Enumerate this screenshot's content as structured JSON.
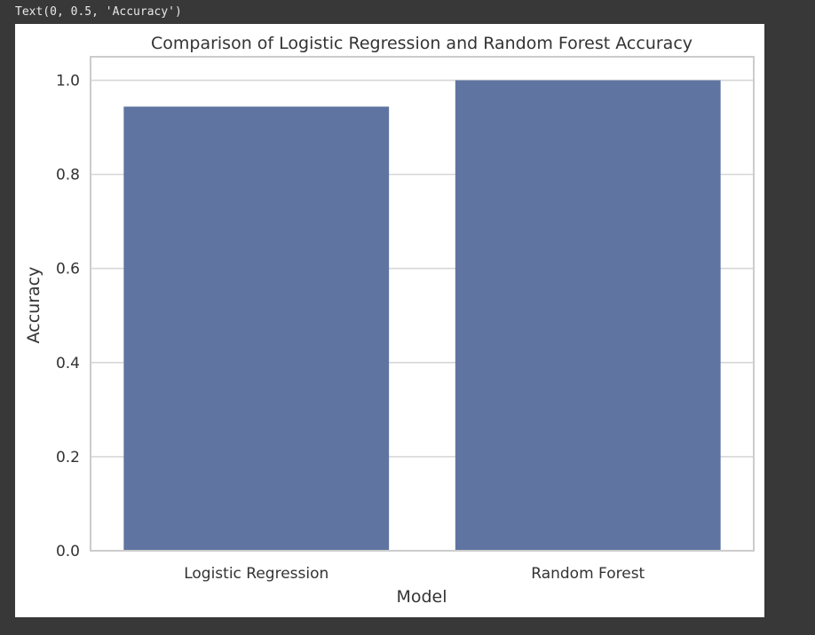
{
  "output": {
    "repr_text": "Text(0, 0.5, 'Accuracy')"
  },
  "chart_data": {
    "type": "bar",
    "title": "Comparison of Logistic Regression and Random Forest Accuracy",
    "xlabel": "Model",
    "ylabel": "Accuracy",
    "categories": [
      "Logistic Regression",
      "Random Forest"
    ],
    "values": [
      0.944,
      1.0
    ],
    "ylim": [
      0,
      1.05
    ],
    "yticks": [
      "0.0",
      "0.2",
      "0.4",
      "0.6",
      "0.8",
      "1.0"
    ],
    "grid": true,
    "colors": {
      "bar": "#5f74a1",
      "grid": "#d7d7d7",
      "frame": "#cccccc"
    }
  }
}
